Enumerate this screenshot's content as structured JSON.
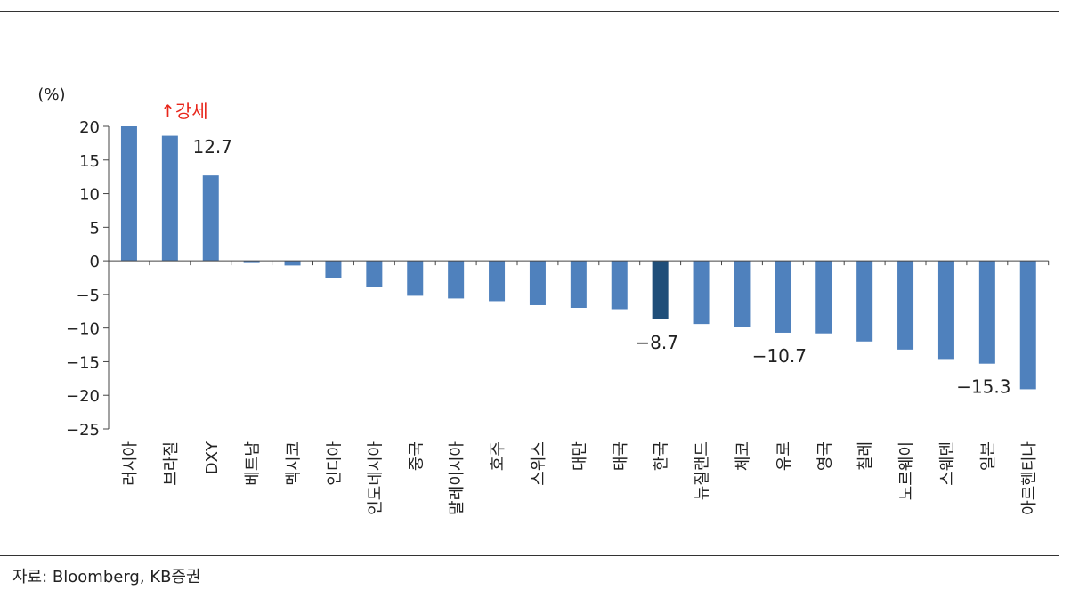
{
  "chart_data": {
    "type": "bar",
    "ylabel": "(%)",
    "ylim": [
      -25,
      20
    ],
    "yticks": [
      20,
      15,
      10,
      5,
      0,
      -5,
      -10,
      -15,
      -20,
      -25
    ],
    "grid": false,
    "categories": [
      "러시아",
      "브라질",
      "DXY",
      "베트남",
      "멕시코",
      "인디아",
      "인도네시아",
      "중국",
      "말레이시아",
      "호주",
      "스위스",
      "대만",
      "태국",
      "한국",
      "뉴질랜드",
      "체코",
      "유로",
      "영국",
      "칠레",
      "노르웨이",
      "스웨덴",
      "일본",
      "아르헨티나"
    ],
    "values": [
      20.0,
      18.6,
      12.7,
      -0.2,
      -0.7,
      -2.5,
      -3.9,
      -5.2,
      -5.6,
      -6.0,
      -6.6,
      -7.0,
      -7.2,
      -8.7,
      -9.4,
      -9.8,
      -10.7,
      -10.8,
      -12.0,
      -13.2,
      -14.6,
      -15.3,
      -19.1
    ],
    "colors": {
      "default": "#4f81bd",
      "highlight": "#1f4e79"
    },
    "highlight_category": "한국",
    "data_labels": [
      {
        "category": "DXY",
        "text": "12.7"
      },
      {
        "category": "한국",
        "text": "−8.7"
      },
      {
        "category": "유로",
        "text": "−10.7"
      },
      {
        "category": "일본",
        "text": "−15.3"
      }
    ],
    "annotation": {
      "text": "↑강세",
      "category": "브라질",
      "color": "#e8261b"
    }
  },
  "source": "자료: Bloomberg, KB증권"
}
